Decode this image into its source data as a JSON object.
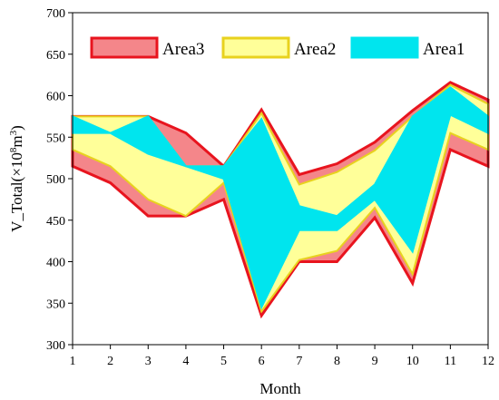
{
  "chart_data": {
    "type": "area",
    "xlabel": "Month",
    "ylabel_main": "V_Total(×10",
    "ylabel_sup1": "8",
    "ylabel_mid": "m",
    "ylabel_sup2": "3",
    "ylabel_end": ")",
    "x": [
      1,
      2,
      3,
      4,
      5,
      6,
      7,
      8,
      9,
      10,
      11,
      12
    ],
    "xticks": [
      "1",
      "2",
      "3",
      "4",
      "5",
      "6",
      "7",
      "8",
      "9",
      "10",
      "11",
      "12"
    ],
    "ylim": [
      300,
      700
    ],
    "yticks": [
      "300",
      "350",
      "400",
      "450",
      "500",
      "550",
      "600",
      "650",
      "700"
    ],
    "ytick_values": [
      300,
      350,
      400,
      450,
      500,
      550,
      600,
      650,
      700
    ],
    "legend_position": "top",
    "series": [
      {
        "name": "Area3",
        "fill": "#f4868a",
        "stroke": "#e8141e",
        "lower": [
          515,
          495,
          455,
          455,
          475,
          335,
          400,
          400,
          453,
          374,
          535,
          515
        ],
        "upper": [
          575,
          575,
          575,
          555,
          515,
          583,
          505,
          518,
          544,
          582,
          616,
          595
        ]
      },
      {
        "name": "Area2",
        "fill": "#ffff99",
        "stroke": "#e8d21e",
        "lower": [
          535,
          515,
          475,
          455,
          495,
          340,
          402,
          413,
          465,
          385,
          555,
          535
        ],
        "upper": [
          575,
          575,
          575,
          515,
          515,
          579,
          493,
          508,
          534,
          575,
          613,
          590
        ]
      },
      {
        "name": "Area1",
        "fill": "#00e5ee",
        "stroke": "#00e5ee",
        "lower": [
          555,
          555,
          530,
          515,
          500,
          345,
          438,
          438,
          475,
          412,
          577,
          555
        ],
        "upper": [
          575,
          555,
          575,
          515,
          515,
          572,
          467,
          455,
          493,
          575,
          610,
          575
        ]
      }
    ],
    "colors": {
      "axis": "#000000",
      "background": "#ffffff"
    }
  }
}
